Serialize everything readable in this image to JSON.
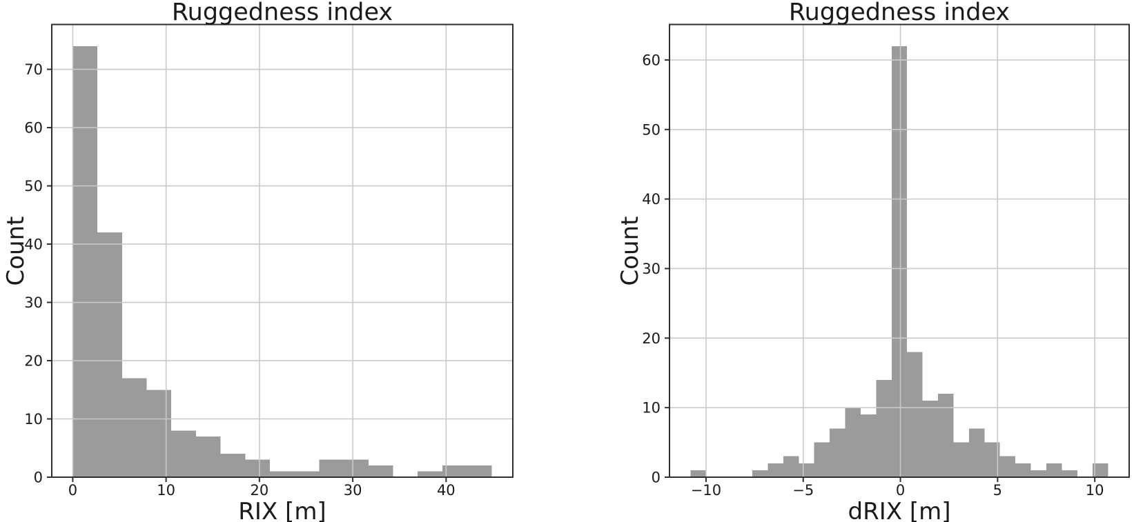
{
  "figure": {
    "background": "#ffffff",
    "description": "Two side-by-side matplotlib-style histograms"
  },
  "style": {
    "bar_color": "#9b9b9b",
    "grid_color": "#c9c9c9",
    "spine_color": "#2e2e2e",
    "text_color": "#1a1a1a"
  },
  "chart_data": [
    {
      "type": "bar",
      "subtype": "histogram",
      "title": "Ruggedness index",
      "xlabel": "RIX [m]",
      "ylabel": "Count",
      "bins": {
        "start": 0.0,
        "width": 2.64
      },
      "counts": [
        74,
        42,
        17,
        15,
        8,
        7,
        4,
        3,
        1,
        1,
        3,
        3,
        2,
        0,
        1,
        2,
        2
      ],
      "total_count": 185,
      "xlim": [
        -2.25,
        47.15
      ],
      "ylim": [
        0,
        77.7
      ],
      "xticks": [
        {
          "v": 0,
          "label": "0"
        },
        {
          "v": 10,
          "label": "10"
        },
        {
          "v": 20,
          "label": "20"
        },
        {
          "v": 30,
          "label": "30"
        },
        {
          "v": 40,
          "label": "40"
        }
      ],
      "yticks": [
        {
          "v": 0,
          "label": "0"
        },
        {
          "v": 10,
          "label": "10"
        },
        {
          "v": 20,
          "label": "20"
        },
        {
          "v": 30,
          "label": "30"
        },
        {
          "v": 40,
          "label": "40"
        },
        {
          "v": 50,
          "label": "50"
        },
        {
          "v": 60,
          "label": "60"
        },
        {
          "v": 70,
          "label": "70"
        }
      ],
      "grid": true,
      "legend": false
    },
    {
      "type": "bar",
      "subtype": "histogram",
      "title": "Ruggedness index",
      "xlabel": "dRIX [m]",
      "ylabel": "Count",
      "bins": {
        "start": -10.8,
        "width": 0.796
      },
      "counts": [
        1,
        0,
        0,
        0,
        1,
        2,
        3,
        2,
        5,
        7,
        10,
        9,
        14,
        62,
        18,
        11,
        12,
        5,
        7,
        5,
        3,
        2,
        1,
        2,
        1,
        0,
        2
      ],
      "total_count": 185,
      "xlim": [
        -11.88,
        11.77
      ],
      "ylim": [
        0,
        65.1
      ],
      "xticks": [
        {
          "v": -10,
          "label": "−10"
        },
        {
          "v": -5,
          "label": "−5"
        },
        {
          "v": 0,
          "label": "0"
        },
        {
          "v": 5,
          "label": "5"
        },
        {
          "v": 10,
          "label": "10"
        }
      ],
      "yticks": [
        {
          "v": 0,
          "label": "0"
        },
        {
          "v": 10,
          "label": "10"
        },
        {
          "v": 20,
          "label": "20"
        },
        {
          "v": 30,
          "label": "30"
        },
        {
          "v": 40,
          "label": "40"
        },
        {
          "v": 50,
          "label": "50"
        },
        {
          "v": 60,
          "label": "60"
        }
      ],
      "grid": true,
      "legend": false
    }
  ]
}
